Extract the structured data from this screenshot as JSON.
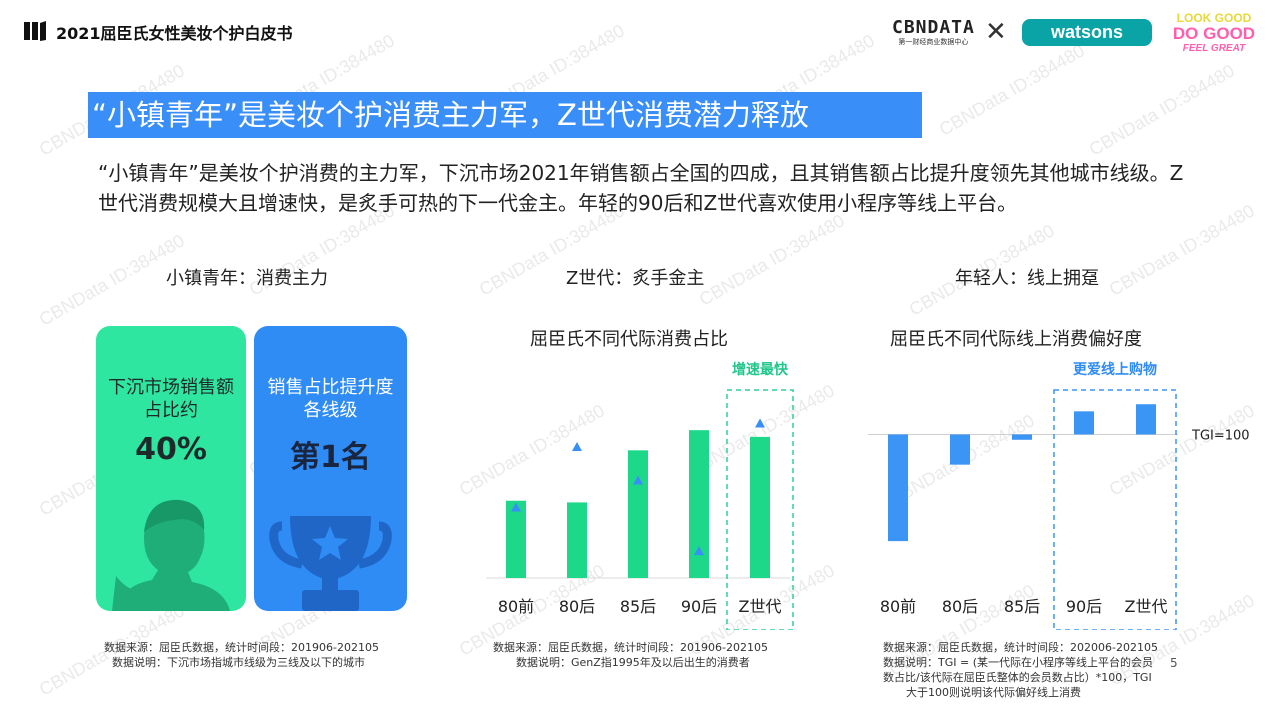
{
  "header": {
    "report_title": "2021屈臣氏女性美妆个护白皮书",
    "cbn_logo": "CBNDATA",
    "cbn_sub": "第一财经商业数据中心",
    "times": "✕",
    "watsons_logo": "watsons",
    "lookgood_line1": "LOOK GOOD",
    "lookgood_line2": "DO GOOD",
    "lookgood_line3": "FEEL GREAT"
  },
  "banner": "“小镇青年”是美妆个护消费主力军，Z世代消费潜力释放",
  "intro": "“小镇青年”是美妆个护消费的主力军，下沉市场2021年销售额占全国的四成，且其销售额占比提升度领先其他城市线级。Z世代消费规模大且增速快，是炙手可热的下一代金主。年轻的90后和Z世代喜欢使用小程序等线上平台。",
  "section1": {
    "title": "小镇青年：消费主力",
    "card1_label": "下沉市场销售额占比约",
    "card1_value": "40%",
    "card2_label": "销售占比提升度各线级",
    "card2_value": "第1名",
    "note1": "数据来源：屈臣氏数据，统计时间段：201906-202105",
    "note2": "数据说明：下沉市场指城市线级为三线及以下的城市"
  },
  "section2": {
    "title": "Z世代：炙手金主",
    "chart_title": "屈臣氏不同代际消费占比",
    "highlight_label": "增速最快",
    "note1": "数据来源：屈臣氏数据，统计时间段：201906-202105",
    "note2": "数据说明：GenZ指1995年及以后出生的消费者"
  },
  "section3": {
    "title": "年轻人：线上拥趸",
    "chart_title": "屈臣氏不同代际线上消费偏好度",
    "highlight_label": "更爱线上购物",
    "baseline_label": "TGI=100",
    "note1": "数据来源：屈臣氏数据，统计时间段：202006-202105",
    "note2": "数据说明：TGI = (某一代际在小程序等线上平台的会员",
    "note3": "数占比/该代际在屈臣氏整体的会员数占比）*100，TGI",
    "note4": "大于100则说明该代际偏好线上消费"
  },
  "watermark": "CBNData ID:384480",
  "page_number": "5",
  "colors": {
    "accent_blue": "#3a8ef8",
    "green": "#2ee6a0",
    "bar_green": "#1ed88a",
    "bar_blue": "#3a95f5",
    "triangle": "#3a8ef8"
  },
  "chart_data": [
    {
      "type": "bar",
      "title": "屈臣氏不同代际消费占比",
      "categories": [
        "80前",
        "80后",
        "85后",
        "90后",
        "Z世代"
      ],
      "series": [
        {
          "values": [
            23,
            22.5,
            38,
            44,
            42
          ]
        },
        {
          "values": [
            21,
            39,
            29,
            8,
            46
          ]
        }
      ],
      "ylim": [
        0,
        50
      ],
      "highlight_category": "Z世代",
      "highlight_label": "增速最快",
      "grid": false
    },
    {
      "type": "bar",
      "title": "屈臣氏不同代际线上消费偏好度",
      "categories": [
        "80前",
        "80后",
        "85后",
        "90后",
        "Z世代"
      ],
      "values": [
        40,
        83,
        97,
        113,
        117
      ],
      "baseline": 100,
      "baseline_label": "TGI=100",
      "ylim": [
        35,
        125
      ],
      "highlight_categories": [
        "90后",
        "Z世代"
      ],
      "highlight_label": "更爱线上购物",
      "grid": false
    }
  ]
}
